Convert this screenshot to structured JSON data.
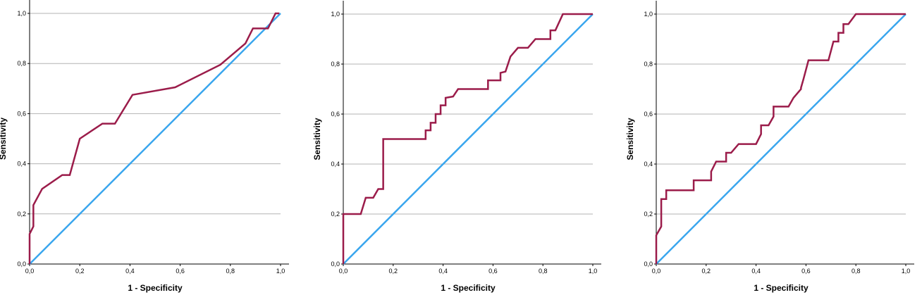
{
  "chart_data": [
    {
      "type": "line",
      "xlabel": "1 - Specificity",
      "ylabel": "Sensitivity",
      "xlim": [
        0,
        1
      ],
      "ylim": [
        0,
        1
      ],
      "xticks": [
        "0,0",
        "0,2",
        "0,4",
        "0,6",
        "0,8",
        "1,0"
      ],
      "yticks": [
        "0,0",
        "0,2",
        "0,4",
        "0,6",
        "0,8",
        "1,0"
      ],
      "grid": "horizontal",
      "colors": {
        "roc": "#9b1c4a",
        "reference": "#3aa6ee",
        "grid": "#b3b3b3"
      },
      "series": [
        {
          "x": [
            0,
            0,
            0.015,
            0.015,
            0.05,
            0.13,
            0.16,
            0.2,
            0.29,
            0.34,
            0.41,
            0.58,
            0.76,
            0.86,
            0.89,
            0.95,
            0.98,
            0.995
          ],
          "y": [
            0,
            0.12,
            0.15,
            0.235,
            0.3,
            0.355,
            0.355,
            0.5,
            0.56,
            0.56,
            0.675,
            0.705,
            0.795,
            0.88,
            0.94,
            0.94,
            1.0,
            1.0
          ]
        },
        {
          "x": [
            0,
            1
          ],
          "y": [
            0,
            1
          ]
        }
      ]
    },
    {
      "type": "line",
      "xlabel": "1 - Specificity",
      "ylabel": "Sensitivity",
      "xlim": [
        0,
        1
      ],
      "ylim": [
        0,
        1
      ],
      "xticks": [
        "0,0",
        "0,2",
        "0,4",
        "0,6",
        "0,8",
        "1,0"
      ],
      "yticks": [
        "0,0",
        "0,2",
        "0,4",
        "0,6",
        "0,8",
        "1,0"
      ],
      "grid": "horizontal",
      "colors": {
        "roc": "#9b1c4a",
        "reference": "#3aa6ee",
        "grid": "#b3b3b3"
      },
      "series": [
        {
          "x": [
            0,
            0,
            0.07,
            0.09,
            0.12,
            0.14,
            0.16,
            0.16,
            0.33,
            0.33,
            0.35,
            0.35,
            0.37,
            0.37,
            0.39,
            0.39,
            0.41,
            0.41,
            0.44,
            0.46,
            0.58,
            0.58,
            0.63,
            0.63,
            0.65,
            0.67,
            0.7,
            0.74,
            0.77,
            0.83,
            0.83,
            0.85,
            0.88,
            1.0
          ],
          "y": [
            0,
            0.2,
            0.2,
            0.265,
            0.265,
            0.3,
            0.3,
            0.5,
            0.5,
            0.535,
            0.535,
            0.565,
            0.565,
            0.6,
            0.6,
            0.635,
            0.635,
            0.665,
            0.67,
            0.7,
            0.7,
            0.735,
            0.735,
            0.765,
            0.77,
            0.83,
            0.865,
            0.865,
            0.9,
            0.9,
            0.935,
            0.935,
            1.0,
            1.0
          ]
        },
        {
          "x": [
            0,
            1
          ],
          "y": [
            0,
            1
          ]
        }
      ]
    },
    {
      "type": "line",
      "xlabel": "1 - Specificity",
      "ylabel": "Sensitivity",
      "xlim": [
        0,
        1
      ],
      "ylim": [
        0,
        1
      ],
      "xticks": [
        "0,0",
        "0,2",
        "0,4",
        "0,6",
        "0,8",
        "1,0"
      ],
      "yticks": [
        "0,0",
        "0,2",
        "0,4",
        "0,6",
        "0,8",
        "1,0"
      ],
      "grid": "horizontal",
      "colors": {
        "roc": "#9b1c4a",
        "reference": "#3aa6ee",
        "grid": "#b3b3b3"
      },
      "series": [
        {
          "x": [
            0,
            0,
            0.02,
            0.02,
            0.04,
            0.04,
            0.15,
            0.15,
            0.22,
            0.22,
            0.24,
            0.28,
            0.28,
            0.3,
            0.33,
            0.4,
            0.42,
            0.42,
            0.45,
            0.47,
            0.47,
            0.53,
            0.55,
            0.58,
            0.58,
            0.59,
            0.61,
            0.69,
            0.71,
            0.73,
            0.73,
            0.75,
            0.75,
            0.77,
            0.8,
            1.0
          ],
          "y": [
            0,
            0.115,
            0.15,
            0.26,
            0.26,
            0.295,
            0.295,
            0.335,
            0.335,
            0.37,
            0.41,
            0.41,
            0.445,
            0.445,
            0.48,
            0.48,
            0.52,
            0.555,
            0.555,
            0.59,
            0.63,
            0.63,
            0.665,
            0.7,
            0.705,
            0.74,
            0.815,
            0.815,
            0.89,
            0.89,
            0.925,
            0.925,
            0.96,
            0.96,
            1.0,
            1.0
          ]
        },
        {
          "x": [
            0,
            1
          ],
          "y": [
            0,
            1
          ]
        }
      ]
    }
  ]
}
